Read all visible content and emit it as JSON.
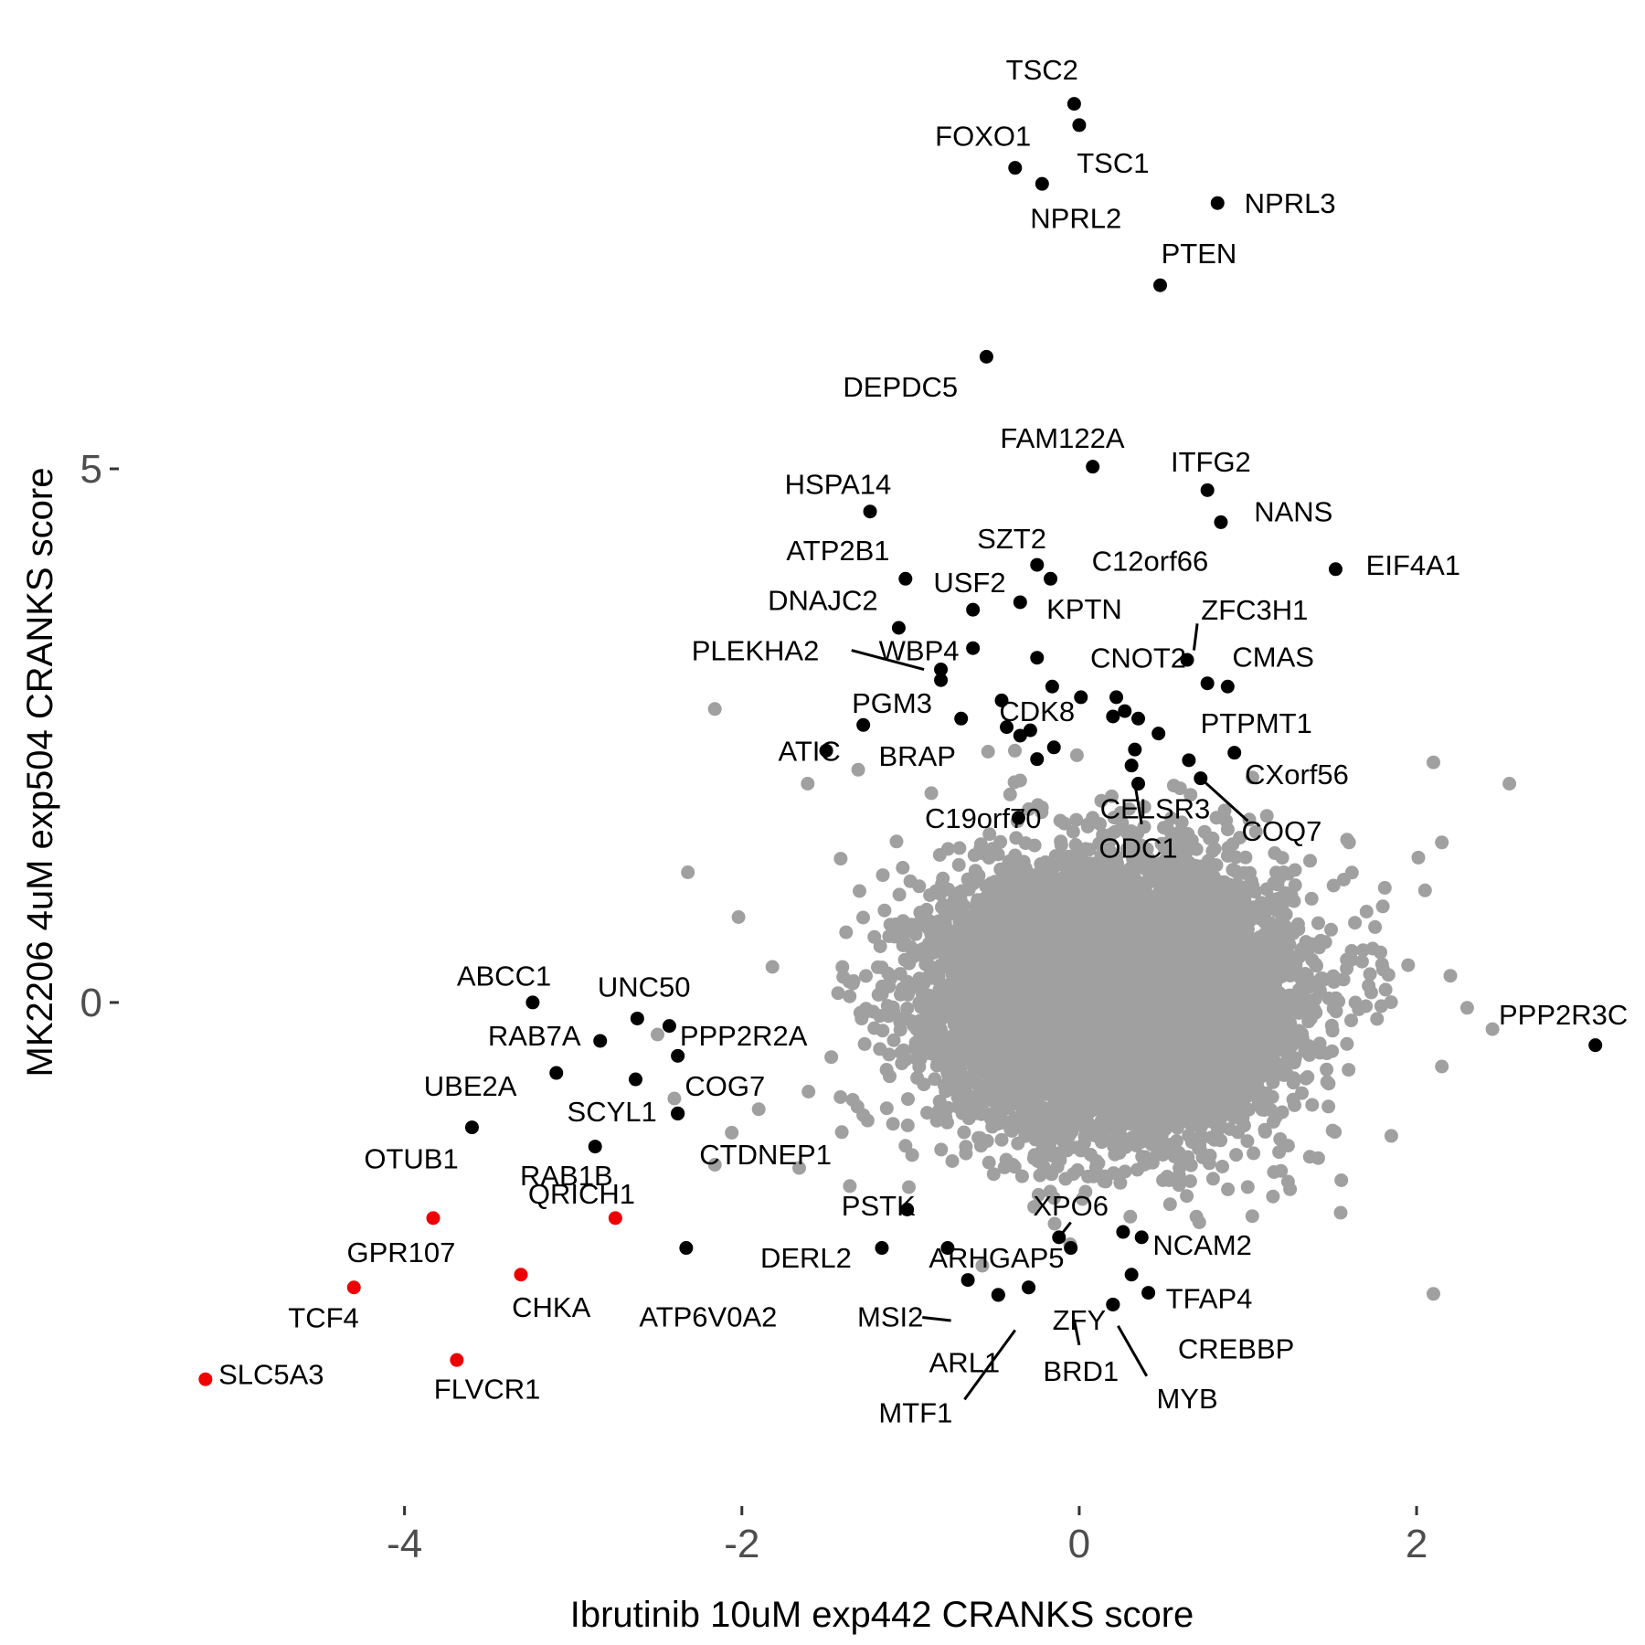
{
  "chart_data": {
    "type": "scatter",
    "title": "",
    "xlabel": "Ibrutinib 10uM exp442 CRANKS score",
    "ylabel": "MK2206 4uM exp504 CRANKS score",
    "xlim": [
      -5.45,
      3.3
    ],
    "ylim": [
      -4.65,
      9.05
    ],
    "x_ticks": [
      {
        "value": -4,
        "label": "-4"
      },
      {
        "value": -2,
        "label": "-2"
      },
      {
        "value": 0,
        "label": "0"
      },
      {
        "value": 2,
        "label": "2"
      }
    ],
    "y_ticks": [
      {
        "value": 0,
        "label": "0"
      },
      {
        "value": 5,
        "label": "5"
      }
    ],
    "grid": false,
    "legend": "none",
    "colors": {
      "background": "#ffffff",
      "cloud": "#a0a0a0",
      "highlight": "#000000",
      "red": "#ee0000"
    },
    "background_cloud": {
      "description_color": "#a0a0a0",
      "center": [
        0.2,
        0.05
      ],
      "core_sd": [
        0.5,
        0.6
      ],
      "count": 9000,
      "outliers": [
        [
          -2.16,
          2.75
        ],
        [
          -2.32,
          1.22
        ],
        [
          -2.02,
          0.8
        ],
        [
          -1.61,
          2.05
        ],
        [
          -1.31,
          2.18
        ],
        [
          -0.54,
          2.35
        ],
        [
          -0.35,
          2.08
        ],
        [
          -2.16,
          -1.52
        ],
        [
          -2.06,
          -1.22
        ],
        [
          -1.66,
          -1.55
        ],
        [
          -1.36,
          -1.72
        ],
        [
          -1.01,
          -1.73
        ],
        [
          2.1,
          2.25
        ],
        [
          2.55,
          2.05
        ],
        [
          2.15,
          1.5
        ],
        [
          2.05,
          1.05
        ],
        [
          1.95,
          0.35
        ],
        [
          2.2,
          0.25
        ],
        [
          2.3,
          -0.05
        ],
        [
          2.45,
          -0.25
        ],
        [
          2.15,
          -0.6
        ],
        [
          1.85,
          -1.25
        ],
        [
          1.55,
          -1.97
        ],
        [
          2.1,
          -2.73
        ],
        [
          1.8,
          0.9
        ],
        [
          1.6,
          1.5
        ],
        [
          1.25,
          -1.75
        ],
        [
          -2.5,
          -0.3
        ],
        [
          -2.4,
          -0.9
        ],
        [
          -1.9,
          -1.0
        ]
      ]
    },
    "points": [
      {
        "name": "TSC2",
        "x": -0.03,
        "y": 8.42,
        "color": "#000000",
        "label": "TSC2",
        "lx": -0.22,
        "ly": 8.74
      },
      {
        "name": "TSC1",
        "x": 0.0,
        "y": 8.22,
        "color": "#000000",
        "label": "TSC1",
        "lx": 0.2,
        "ly": 7.87
      },
      {
        "name": "FOXO1",
        "x": -0.38,
        "y": 7.82,
        "color": "#000000",
        "label": "FOXO1",
        "lx": -0.57,
        "ly": 8.12
      },
      {
        "name": "NPRL2",
        "x": -0.22,
        "y": 7.67,
        "color": "#000000",
        "label": "NPRL2",
        "lx": -0.02,
        "ly": 7.35
      },
      {
        "name": "NPRL3",
        "x": 0.82,
        "y": 7.49,
        "color": "#000000",
        "label": "NPRL3",
        "lx": 1.25,
        "ly": 7.49
      },
      {
        "name": "PTEN",
        "x": 0.48,
        "y": 6.72,
        "color": "#000000",
        "label": "PTEN",
        "lx": 0.71,
        "ly": 7.02
      },
      {
        "name": "DEPDC5",
        "x": -0.55,
        "y": 6.05,
        "color": "#000000",
        "label": "DEPDC5",
        "lx": -1.06,
        "ly": 5.77
      },
      {
        "name": "FAM122A",
        "x": 0.08,
        "y": 5.02,
        "color": "#000000",
        "label": "FAM122A",
        "lx": -0.1,
        "ly": 5.29
      },
      {
        "name": "ITFG2",
        "x": 0.76,
        "y": 4.8,
        "color": "#000000",
        "label": "ITFG2",
        "lx": 0.78,
        "ly": 5.07
      },
      {
        "name": "NANS",
        "x": 0.84,
        "y": 4.5,
        "color": "#000000",
        "label": "NANS",
        "lx": 1.27,
        "ly": 4.6
      },
      {
        "name": "HSPA14",
        "x": -1.24,
        "y": 4.6,
        "color": "#000000",
        "label": "HSPA14",
        "lx": -1.43,
        "ly": 4.86
      },
      {
        "name": "EIF4A1",
        "x": 1.52,
        "y": 4.06,
        "color": "#000000",
        "label": "EIF4A1",
        "lx": 1.98,
        "ly": 4.1
      },
      {
        "name": "SZT2",
        "x": -0.25,
        "y": 4.1,
        "color": "#000000",
        "label": "SZT2",
        "lx": -0.4,
        "ly": 4.35
      },
      {
        "name": "C12orf66",
        "x": -0.17,
        "y": 3.97,
        "color": "#000000",
        "label": "C12orf66",
        "lx": 0.42,
        "ly": 4.14
      },
      {
        "name": "ATP2B1",
        "x": -1.03,
        "y": 3.97,
        "color": "#000000",
        "label": "ATP2B1",
        "lx": -1.43,
        "ly": 4.24
      },
      {
        "name": "USF2",
        "x": -0.63,
        "y": 3.68,
        "color": "#000000",
        "label": "USF2",
        "lx": -0.65,
        "ly": 3.94
      },
      {
        "name": "KPTN",
        "x": -0.35,
        "y": 3.75,
        "color": "#000000",
        "label": "KPTN",
        "lx": 0.03,
        "ly": 3.69
      },
      {
        "name": "DNAJC2",
        "x": -1.07,
        "y": 3.51,
        "color": "#000000",
        "label": "DNAJC2",
        "lx": -1.52,
        "ly": 3.77
      },
      {
        "name": "ZFC3H1",
        "x": 0.64,
        "y": 3.21,
        "color": "#000000",
        "label": "ZFC3H1",
        "lx": 1.04,
        "ly": 3.68,
        "leader": [
          0.68,
          3.3,
          0.7,
          3.55
        ]
      },
      {
        "name": "WBP4",
        "x": -0.63,
        "y": 3.32,
        "color": "#000000",
        "label": "WBP4",
        "lx": -0.95,
        "ly": 3.3
      },
      {
        "name": "PLEKHA2",
        "x": -0.82,
        "y": 3.12,
        "color": "#000000",
        "label": "PLEKHA2",
        "lx": -1.92,
        "ly": 3.3,
        "leader": [
          -1.35,
          3.3,
          -0.92,
          3.12
        ]
      },
      {
        "name": "CNOT2",
        "x": -0.25,
        "y": 3.23,
        "color": "#000000",
        "label": "CNOT2",
        "lx": 0.35,
        "ly": 3.23
      },
      {
        "name": "CMAS",
        "x": 0.76,
        "y": 2.99,
        "color": "#000000",
        "label": "CMAS",
        "lx": 1.15,
        "ly": 3.24
      },
      {
        "name": "g_cmas2",
        "x": 0.88,
        "y": 2.96,
        "color": "#000000"
      },
      {
        "name": "g_plekha2b",
        "x": -0.82,
        "y": 3.02,
        "color": "#000000"
      },
      {
        "name": "PGM3",
        "x": -1.28,
        "y": 2.6,
        "color": "#000000",
        "label": "PGM3",
        "lx": -1.11,
        "ly": 2.81
      },
      {
        "name": "CDK8",
        "x": -0.46,
        "y": 2.83,
        "color": "#000000",
        "label": "CDK8",
        "lx": -0.25,
        "ly": 2.73
      },
      {
        "name": "g_cdk8b",
        "x": -0.43,
        "y": 2.58,
        "color": "#000000"
      },
      {
        "name": "g_cdk8c",
        "x": -0.35,
        "y": 2.5,
        "color": "#000000"
      },
      {
        "name": "g_cdk8d",
        "x": -0.15,
        "y": 2.39,
        "color": "#000000"
      },
      {
        "name": "g_cdk8e",
        "x": -0.25,
        "y": 2.28,
        "color": "#000000"
      },
      {
        "name": "g_cnot2b",
        "x": -0.16,
        "y": 2.96,
        "color": "#000000"
      },
      {
        "name": "g_cnot2c",
        "x": 0.01,
        "y": 2.86,
        "color": "#000000"
      },
      {
        "name": "g_cnot2d",
        "x": 0.22,
        "y": 2.86,
        "color": "#000000"
      },
      {
        "name": "g_cnot2e",
        "x": 0.27,
        "y": 2.73,
        "color": "#000000"
      },
      {
        "name": "g_cnot2f",
        "x": 0.2,
        "y": 2.68,
        "color": "#000000"
      },
      {
        "name": "g_cnot2g",
        "x": 0.35,
        "y": 2.66,
        "color": "#000000"
      },
      {
        "name": "g_brap2",
        "x": -0.7,
        "y": 2.66,
        "color": "#000000"
      },
      {
        "name": "BRAP",
        "x": -0.29,
        "y": 2.55,
        "color": "#000000",
        "label": "BRAP",
        "lx": -0.96,
        "ly": 2.31
      },
      {
        "name": "ATIC",
        "x": -1.5,
        "y": 2.36,
        "color": "#000000",
        "label": "ATIC",
        "lx": -1.6,
        "ly": 2.36
      },
      {
        "name": "PTPMT1",
        "x": 0.47,
        "y": 2.52,
        "color": "#000000",
        "label": "PTPMT1",
        "lx": 1.05,
        "ly": 2.62
      },
      {
        "name": "g_ptp2",
        "x": 0.33,
        "y": 2.37,
        "color": "#000000"
      },
      {
        "name": "CXorf56",
        "x": 0.92,
        "y": 2.34,
        "color": "#000000",
        "label": "CXorf56",
        "lx": 1.29,
        "ly": 2.14
      },
      {
        "name": "g_cx2",
        "x": 0.65,
        "y": 2.27,
        "color": "#000000"
      },
      {
        "name": "CELSR3",
        "x": 0.31,
        "y": 2.22,
        "color": "#000000",
        "label": "CELSR3",
        "lx": 0.45,
        "ly": 1.82
      },
      {
        "name": "C19orf70",
        "x": -0.36,
        "y": 1.73,
        "color": "#000000",
        "label": "C19orf70",
        "lx": -0.57,
        "ly": 1.73
      },
      {
        "name": "COQ7",
        "x": 0.72,
        "y": 2.1,
        "color": "#000000",
        "label": "COQ7",
        "lx": 1.2,
        "ly": 1.61,
        "leader": [
          0.72,
          2.1,
          1.0,
          1.7
        ]
      },
      {
        "name": "ODC1",
        "x": 0.35,
        "y": 2.05,
        "color": "#000000",
        "label": "ODC1",
        "lx": 0.35,
        "ly": 1.45,
        "leader": [
          0.33,
          2.05,
          0.37,
          1.67
        ]
      },
      {
        "name": "ABCC1",
        "x": -3.24,
        "y": 0.0,
        "color": "#000000",
        "label": "ABCC1",
        "lx": -3.41,
        "ly": 0.25
      },
      {
        "name": "UNC50",
        "x": -2.62,
        "y": -0.15,
        "color": "#000000",
        "label": "UNC50",
        "lx": -2.58,
        "ly": 0.15
      },
      {
        "name": "g_unc50b",
        "x": -2.43,
        "y": -0.22,
        "color": "#000000"
      },
      {
        "name": "RAB7A",
        "x": -2.84,
        "y": -0.36,
        "color": "#000000",
        "label": "RAB7A",
        "lx": -3.23,
        "ly": -0.31
      },
      {
        "name": "PPP2R2A",
        "x": -2.38,
        "y": -0.5,
        "color": "#000000",
        "label": "PPP2R2A",
        "lx": -1.99,
        "ly": -0.31
      },
      {
        "name": "UBE2A",
        "x": -3.1,
        "y": -0.66,
        "color": "#000000",
        "label": "UBE2A",
        "lx": -3.61,
        "ly": -0.78
      },
      {
        "name": "g_cog7b",
        "x": -2.63,
        "y": -0.72,
        "color": "#000000"
      },
      {
        "name": "COG7",
        "x": -2.38,
        "y": -1.04,
        "color": "#000000",
        "label": "COG7",
        "lx": -2.1,
        "ly": -0.78
      },
      {
        "name": "SCYL1",
        "x": -2.38,
        "y": -1.04,
        "color": "#000000",
        "label": "SCYL1",
        "lx": -2.77,
        "ly": -1.02
      },
      {
        "name": "OTUB1",
        "x": -3.6,
        "y": -1.17,
        "color": "#000000",
        "label": "OTUB1",
        "lx": -3.96,
        "ly": -1.46
      },
      {
        "name": "RAB1B",
        "x": -2.87,
        "y": -1.35,
        "color": "#000000",
        "label": "RAB1B",
        "lx": -3.04,
        "ly": -1.62
      },
      {
        "name": "CTDNEP1",
        "x": -2.38,
        "y": -1.04,
        "color": "#000000",
        "label": "CTDNEP1",
        "lx": -1.86,
        "ly": -1.42
      },
      {
        "name": "PSTK",
        "x": -1.02,
        "y": -1.94,
        "color": "#000000",
        "label": "PSTK",
        "lx": -1.19,
        "ly": -1.9
      },
      {
        "name": "XPO6",
        "x": -0.12,
        "y": -2.2,
        "color": "#000000",
        "label": "XPO6",
        "lx": -0.05,
        "ly": -1.9,
        "leader": [
          -0.12,
          -2.2,
          -0.05,
          -2.06
        ]
      },
      {
        "name": "NCAM2",
        "x": 0.26,
        "y": -2.15,
        "color": "#000000",
        "label": "NCAM2",
        "lx": 0.73,
        "ly": -2.27
      },
      {
        "name": "g_ncam2b",
        "x": 0.37,
        "y": -2.2,
        "color": "#000000"
      },
      {
        "name": "DERL2",
        "x": -1.17,
        "y": -2.3,
        "color": "#000000",
        "label": "DERL2",
        "lx": -1.62,
        "ly": -2.39
      },
      {
        "name": "ARHGAP5",
        "x": -0.78,
        "y": -2.3,
        "color": "#000000",
        "label": "ARHGAP5",
        "lx": -0.49,
        "ly": -2.39
      },
      {
        "name": "g_arh2",
        "x": -0.05,
        "y": -2.3,
        "color": "#000000"
      },
      {
        "name": "TFAP4",
        "x": 0.31,
        "y": -2.55,
        "color": "#000000",
        "label": "TFAP4",
        "lx": 0.77,
        "ly": -2.77
      },
      {
        "name": "ATP6V0A2",
        "x": -2.33,
        "y": -2.3,
        "color": "#000000",
        "label": "ATP6V0A2",
        "lx": -2.2,
        "ly": -2.94
      },
      {
        "name": "MSI2",
        "x": -0.66,
        "y": -2.6,
        "color": "#000000",
        "label": "MSI2",
        "lx": -1.12,
        "ly": -2.94,
        "leader": [
          -0.93,
          -2.95,
          -0.76,
          -2.98
        ]
      },
      {
        "name": "ZFY",
        "x": -0.3,
        "y": -2.67,
        "color": "#000000",
        "label": "ZFY",
        "lx": 0.0,
        "ly": -2.97
      },
      {
        "name": "g_zfy2",
        "x": -0.48,
        "y": -2.74,
        "color": "#000000"
      },
      {
        "name": "CREBBP",
        "x": 0.41,
        "y": -2.72,
        "color": "#000000",
        "label": "CREBBP",
        "lx": 0.93,
        "ly": -3.24
      },
      {
        "name": "BRD1",
        "x": 0.2,
        "y": -2.83,
        "color": "#000000",
        "label": "BRD1",
        "lx": 0.01,
        "ly": -3.45,
        "leader": [
          -0.03,
          -2.97,
          0.0,
          -3.21
        ]
      },
      {
        "name": "ARL1",
        "x": -0.48,
        "y": -2.74,
        "color": "#000000",
        "label": "ARL1",
        "lx": -0.68,
        "ly": -3.37
      },
      {
        "name": "MYB",
        "x": 0.2,
        "y": -2.83,
        "color": "#000000",
        "label": "MYB",
        "lx": 0.64,
        "ly": -3.71,
        "leader": [
          0.23,
          -3.03,
          0.4,
          -3.5
        ]
      },
      {
        "name": "MTF1",
        "x": -0.3,
        "y": -2.67,
        "color": "#000000",
        "label": "MTF1",
        "lx": -0.97,
        "ly": -3.84,
        "leader": [
          -0.38,
          -3.07,
          -0.68,
          -3.72
        ]
      },
      {
        "name": "PPP2R3C",
        "x": 3.06,
        "y": -0.4,
        "color": "#000000",
        "label": "PPP2R3C",
        "lx": 2.87,
        "ly": -0.11
      },
      {
        "name": "QRICH1",
        "x": -2.75,
        "y": -2.02,
        "color": "#ee0000",
        "label": "QRICH1",
        "lx": -2.95,
        "ly": -1.79
      },
      {
        "name": "GPR107",
        "x": -3.83,
        "y": -2.02,
        "color": "#ee0000",
        "label": "GPR107",
        "lx": -4.02,
        "ly": -2.34
      },
      {
        "name": "CHKA",
        "x": -3.31,
        "y": -2.55,
        "color": "#ee0000",
        "label": "CHKA",
        "lx": -3.13,
        "ly": -2.85
      },
      {
        "name": "TCF4",
        "x": -4.3,
        "y": -2.67,
        "color": "#ee0000",
        "label": "TCF4",
        "lx": -4.48,
        "ly": -2.95
      },
      {
        "name": "FLVCR1",
        "x": -3.69,
        "y": -3.35,
        "color": "#ee0000",
        "label": "FLVCR1",
        "lx": -3.51,
        "ly": -3.62
      },
      {
        "name": "SLC5A3",
        "x": -5.18,
        "y": -3.53,
        "color": "#ee0000",
        "label": "SLC5A3",
        "lx": -4.79,
        "ly": -3.48
      }
    ]
  }
}
